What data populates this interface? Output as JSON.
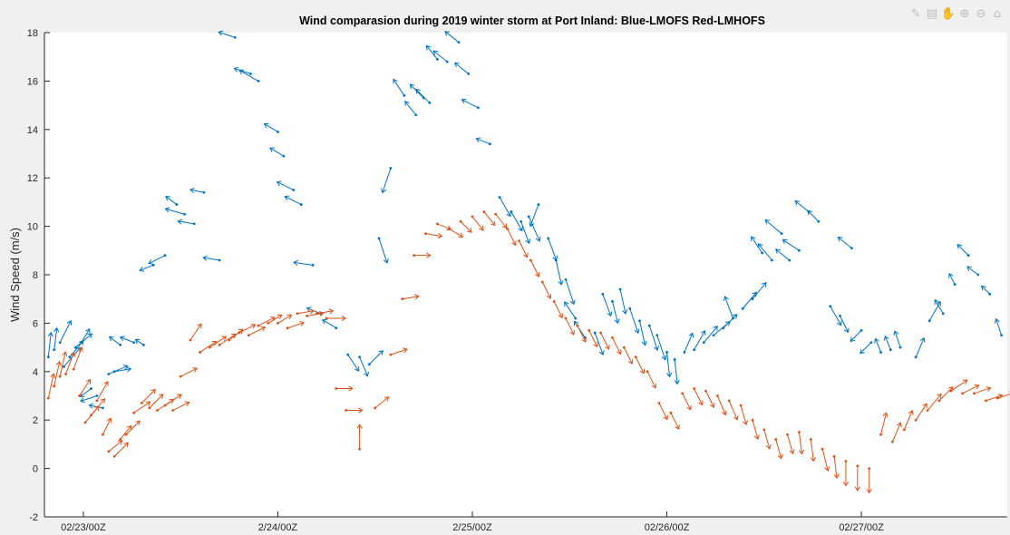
{
  "chart_data": {
    "type": "scatter",
    "title": "Wind comparasion during 2019 winter storm at Port Inland:   Blue-LMOFS  Red-LMHOFS",
    "ylabel": "Wind Speed (m/s)",
    "xlabel": "",
    "ylim": [
      -2,
      18
    ],
    "yticks": [
      -2,
      0,
      2,
      4,
      6,
      8,
      10,
      12,
      14,
      16,
      18
    ],
    "xlim": [
      -0.2,
      4.75
    ],
    "xtick_values": [
      0,
      1,
      2,
      3,
      4
    ],
    "xtick_labels": [
      "02/23/00Z",
      "2/24/00Z",
      "2/25/00Z",
      "02/26/00Z",
      "02/27/00Z"
    ],
    "x_units": "days since 02/23/00Z",
    "series": [
      {
        "name": "Blue-LMOFS",
        "color": "#0072bd",
        "x": [
          -0.18,
          -0.15,
          -0.12,
          -0.1,
          -0.07,
          -0.04,
          -0.01,
          0.04,
          0.07,
          0.1,
          0.13,
          0.16,
          0.19,
          0.26,
          0.31,
          0.36,
          0.42,
          0.48,
          0.52,
          0.57,
          0.62,
          0.7,
          0.78,
          0.86,
          0.9,
          1.0,
          1.03,
          1.08,
          1.12,
          1.18,
          1.22,
          1.3,
          1.36,
          1.42,
          1.47,
          1.52,
          1.58,
          1.65,
          1.71,
          1.75,
          1.78,
          1.82,
          1.87,
          1.93,
          1.98,
          2.03,
          2.09,
          2.14,
          2.2,
          2.25,
          2.29,
          2.34,
          2.39,
          2.43,
          2.48,
          2.53,
          2.58,
          2.63,
          2.67,
          2.72,
          2.76,
          2.81,
          2.86,
          2.91,
          2.95,
          3.0,
          3.04,
          3.09,
          3.14,
          3.19,
          3.24,
          3.29,
          3.34,
          3.39,
          3.44,
          3.49,
          3.54,
          3.59,
          3.63,
          3.68,
          3.73,
          3.78,
          3.84,
          3.89,
          3.95,
          4.0,
          4.05,
          4.1,
          4.15,
          4.2,
          4.28,
          4.35,
          4.42,
          4.48,
          4.55,
          4.6,
          4.66,
          4.72
        ],
        "y": [
          4.6,
          4.9,
          5.2,
          4.2,
          4.6,
          5.0,
          5.2,
          3.3,
          3.0,
          2.5,
          3.9,
          4.0,
          5.1,
          5.2,
          5.1,
          8.4,
          8.8,
          10.9,
          10.5,
          10.1,
          11.4,
          8.6,
          17.8,
          16.3,
          16.0,
          13.9,
          12.9,
          11.5,
          10.9,
          8.4,
          6.4,
          5.8,
          4.7,
          4.6,
          4.3,
          9.5,
          12.4,
          15.4,
          14.6,
          15.3,
          15.1,
          16.9,
          16.8,
          17.6,
          16.3,
          14.9,
          13.4,
          11.2,
          10.6,
          10.2,
          10.4,
          10.9,
          9.5,
          8.6,
          7.8,
          6.2,
          5.4,
          5.6,
          7.2,
          6.9,
          7.4,
          6.6,
          6.1,
          5.9,
          5.5,
          4.8,
          4.5,
          4.8,
          4.9,
          5.2,
          5.5,
          5.8,
          6.2,
          6.6,
          7.0,
          8.9,
          8.6,
          9.7,
          8.6,
          9.0,
          10.6,
          10.2,
          6.7,
          6.3,
          9.1,
          5.7,
          5.2,
          4.8,
          4.9,
          5.0,
          4.6,
          6.1,
          6.4,
          7.6,
          8.8,
          8.0,
          7.2,
          5.5
        ],
        "u": [
          0.1,
          0.1,
          0.4,
          0.6,
          0.5,
          0.6,
          0.3,
          -0.4,
          -0.6,
          -0.5,
          0.7,
          0.6,
          -0.4,
          -0.5,
          -0.3,
          -0.5,
          -0.6,
          -0.4,
          -0.7,
          -0.6,
          -0.5,
          -0.6,
          -0.6,
          -0.6,
          -0.7,
          -0.5,
          -0.5,
          -0.6,
          -0.6,
          -0.7,
          -0.5,
          -0.5,
          0.4,
          0.3,
          0.5,
          0.3,
          -0.3,
          -0.4,
          -0.4,
          -0.5,
          -0.5,
          -0.4,
          -0.5,
          -0.5,
          -0.5,
          -0.6,
          -0.5,
          0.4,
          0.4,
          0.3,
          0.4,
          -0.3,
          0.3,
          0.2,
          0.3,
          -0.4,
          -0.4,
          0.3,
          0.3,
          0.2,
          0.2,
          0.3,
          0.2,
          0.3,
          0.3,
          0.1,
          0.1,
          0.3,
          0.4,
          0.5,
          0.6,
          0.5,
          -0.3,
          0.5,
          0.5,
          -0.4,
          -0.5,
          -0.6,
          -0.5,
          -0.6,
          -0.5,
          -0.4,
          0.4,
          0.3,
          -0.5,
          -0.4,
          -0.4,
          -0.2,
          -0.2,
          -0.2,
          0.3,
          0.4,
          -0.3,
          -0.2,
          -0.4,
          -0.4,
          -0.3,
          -0.2
        ],
        "v": [
          0.9,
          0.8,
          0.8,
          0.7,
          0.6,
          0.5,
          0.5,
          -0.3,
          -0.2,
          0.1,
          0.3,
          0.1,
          0.3,
          0.2,
          0.2,
          -0.2,
          -0.3,
          0.3,
          0.2,
          0.1,
          0.1,
          0.1,
          0.2,
          0.2,
          0.4,
          0.3,
          0.3,
          0.3,
          0.3,
          0.1,
          0.2,
          0.3,
          -0.6,
          -0.7,
          0.5,
          -0.9,
          -0.9,
          0.6,
          0.5,
          0.5,
          0.5,
          0.5,
          0.4,
          0.4,
          0.4,
          0.3,
          0.2,
          -0.7,
          -0.7,
          -0.8,
          -0.9,
          -0.8,
          -0.8,
          -0.9,
          -0.9,
          0.6,
          0.6,
          -0.8,
          -0.8,
          -0.8,
          -0.9,
          -0.9,
          -0.9,
          -0.9,
          -0.9,
          -0.9,
          -0.9,
          0.7,
          0.7,
          0.6,
          0.5,
          0.5,
          0.8,
          0.6,
          0.6,
          0.6,
          0.6,
          0.5,
          0.4,
          0.4,
          0.4,
          0.4,
          -0.7,
          -0.6,
          0.4,
          -0.4,
          -0.4,
          0.5,
          0.5,
          0.6,
          0.7,
          0.7,
          0.5,
          0.4,
          0.4,
          0.3,
          0.3,
          0.6
        ]
      },
      {
        "name": "Red-LMHOFS",
        "color": "#d95319",
        "x": [
          -0.18,
          -0.15,
          -0.12,
          -0.09,
          -0.05,
          -0.02,
          0.01,
          0.04,
          0.07,
          0.1,
          0.13,
          0.16,
          0.19,
          0.22,
          0.26,
          0.3,
          0.34,
          0.38,
          0.42,
          0.46,
          0.5,
          0.55,
          0.6,
          0.65,
          0.7,
          0.75,
          0.8,
          0.85,
          0.9,
          0.95,
          1.0,
          1.05,
          1.1,
          1.15,
          1.2,
          1.25,
          1.3,
          1.35,
          1.42,
          1.5,
          1.58,
          1.64,
          1.7,
          1.76,
          1.82,
          1.88,
          1.94,
          2.0,
          2.06,
          2.12,
          2.18,
          2.24,
          2.3,
          2.36,
          2.42,
          2.48,
          2.54,
          2.6,
          2.66,
          2.72,
          2.78,
          2.84,
          2.9,
          2.96,
          3.02,
          3.08,
          3.14,
          3.2,
          3.26,
          3.32,
          3.38,
          3.44,
          3.5,
          3.56,
          3.62,
          3.68,
          3.74,
          3.8,
          3.86,
          3.92,
          3.98,
          4.04,
          4.1,
          4.16,
          4.22,
          4.28,
          4.34,
          4.4,
          4.46,
          4.52,
          4.58,
          4.64,
          4.7
        ],
        "y": [
          2.9,
          3.4,
          3.8,
          3.9,
          4.1,
          3.0,
          1.9,
          2.2,
          2.8,
          1.4,
          0.7,
          0.5,
          1.2,
          1.4,
          2.3,
          2.7,
          2.5,
          2.4,
          2.6,
          2.4,
          3.8,
          5.3,
          4.8,
          5.0,
          5.1,
          5.3,
          5.6,
          5.5,
          5.9,
          6.0,
          6.0,
          5.8,
          6.4,
          6.3,
          6.4,
          6.2,
          3.3,
          2.4,
          0.8,
          2.5,
          4.7,
          7.0,
          8.8,
          9.7,
          10.1,
          9.9,
          10.2,
          10.4,
          10.6,
          10.5,
          9.9,
          9.4,
          8.6,
          7.7,
          6.9,
          6.2,
          5.9,
          5.7,
          5.6,
          5.4,
          5.0,
          4.6,
          4.0,
          2.7,
          2.3,
          3.1,
          3.3,
          3.2,
          3.0,
          2.8,
          2.6,
          2.0,
          1.6,
          1.2,
          1.4,
          1.5,
          1.2,
          0.8,
          0.5,
          0.3,
          0.1,
          0.0,
          1.4,
          1.1,
          1.6,
          2.0,
          2.4,
          2.8,
          3.2,
          3.1,
          3.1,
          2.8,
          2.9
        ],
        "u": [
          0.2,
          0.2,
          0.2,
          0.3,
          0.3,
          0.4,
          0.5,
          0.5,
          0.4,
          0.3,
          0.5,
          0.5,
          0.4,
          0.5,
          0.6,
          0.5,
          0.5,
          0.6,
          0.6,
          0.6,
          0.6,
          0.4,
          0.6,
          0.6,
          0.6,
          0.5,
          0.6,
          0.6,
          0.6,
          0.5,
          0.5,
          0.6,
          0.6,
          0.6,
          0.6,
          0.7,
          0.6,
          0.6,
          0.0,
          0.5,
          0.6,
          0.6,
          0.6,
          0.6,
          0.5,
          0.5,
          0.4,
          0.4,
          0.4,
          0.4,
          0.3,
          0.3,
          0.3,
          0.3,
          0.3,
          0.3,
          0.3,
          0.3,
          0.3,
          0.3,
          0.3,
          0.3,
          0.3,
          0.3,
          0.3,
          0.3,
          0.3,
          0.3,
          0.3,
          0.3,
          0.2,
          0.2,
          0.2,
          0.2,
          0.2,
          0.1,
          0.1,
          0.2,
          0.1,
          0.0,
          0.0,
          0.0,
          0.2,
          0.3,
          0.3,
          0.4,
          0.5,
          0.5,
          0.6,
          0.6,
          0.6,
          0.6,
          0.6
        ],
        "v": [
          0.9,
          0.9,
          0.9,
          0.8,
          0.8,
          0.6,
          0.6,
          0.6,
          0.7,
          0.6,
          0.4,
          0.5,
          0.5,
          0.5,
          0.4,
          0.5,
          0.5,
          0.4,
          0.4,
          0.3,
          0.3,
          0.6,
          0.4,
          0.4,
          0.4,
          0.4,
          0.3,
          0.3,
          0.3,
          0.3,
          0.3,
          0.2,
          0.1,
          0.1,
          0.1,
          0.0,
          0.0,
          0.0,
          0.9,
          0.4,
          0.2,
          0.1,
          0.0,
          -0.1,
          -0.2,
          -0.3,
          -0.4,
          -0.5,
          -0.5,
          -0.5,
          -0.6,
          -0.6,
          -0.6,
          -0.6,
          -0.6,
          -0.6,
          -0.6,
          -0.6,
          -0.6,
          -0.6,
          -0.6,
          -0.6,
          -0.6,
          -0.6,
          -0.6,
          -0.6,
          -0.6,
          -0.6,
          -0.7,
          -0.7,
          -0.7,
          -0.7,
          -0.7,
          -0.7,
          -0.7,
          -0.8,
          -0.8,
          -0.8,
          -0.8,
          -0.9,
          -0.9,
          -0.9,
          0.8,
          0.7,
          0.7,
          0.6,
          0.6,
          0.5,
          0.4,
          0.3,
          0.2,
          0.2,
          0.2
        ]
      }
    ]
  },
  "toolbar": {
    "icons": [
      "brush-icon",
      "datatip-icon",
      "pan-icon",
      "zoom-in-icon",
      "zoom-out-icon",
      "home-icon"
    ]
  }
}
